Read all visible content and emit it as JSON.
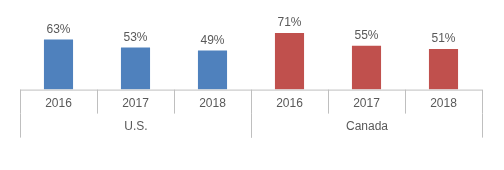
{
  "chart_data": {
    "type": "bar",
    "categories": [
      "2016",
      "2017",
      "2018",
      "2016",
      "2017",
      "2018"
    ],
    "series": [
      {
        "name": "U.S.",
        "color": "#4f81bd",
        "values": [
          63,
          53,
          49,
          null,
          null,
          null
        ],
        "value_labels": [
          "63%",
          "53%",
          "49%",
          null,
          null,
          null
        ]
      },
      {
        "name": "Canada",
        "color": "#c0504d",
        "values": [
          null,
          null,
          null,
          71,
          55,
          51
        ],
        "value_labels": [
          null,
          null,
          null,
          "71%",
          "55%",
          "51%"
        ]
      }
    ],
    "ylim": [
      0,
      100
    ],
    "stacked": true,
    "data_labels": true,
    "tick_labels": "x",
    "grid": false
  }
}
